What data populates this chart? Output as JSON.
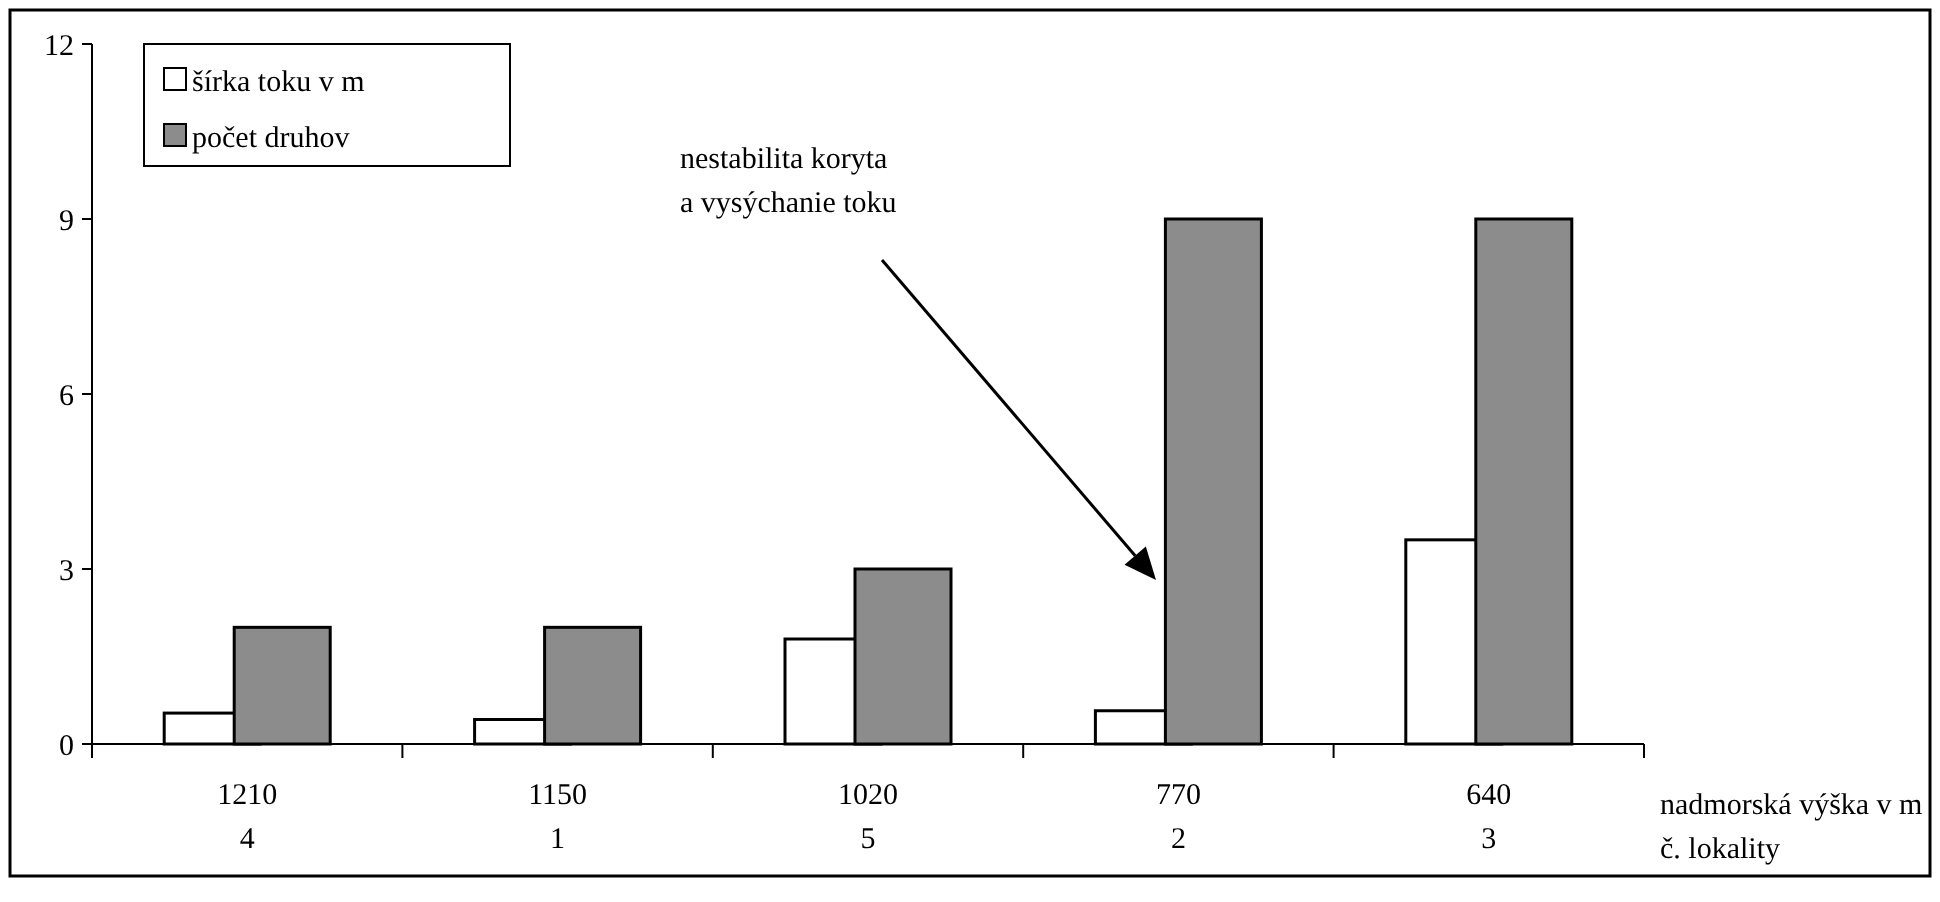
{
  "chart_data": {
    "type": "bar",
    "categories": [
      "1210\n4",
      "1150\n1",
      "1020\n5",
      "770\n2",
      "640\n3"
    ],
    "xlabel": "nadmorská výška v m\nč. lokality",
    "series": [
      {
        "name": "šírka toku v m",
        "color": "#ffffff",
        "values": [
          0.53,
          0.42,
          1.8,
          0.57,
          3.5
        ]
      },
      {
        "name": "počet druhov",
        "color": "#8c8c8c",
        "values": [
          2,
          2,
          3,
          9,
          9
        ]
      }
    ],
    "ylim": [
      0,
      12
    ],
    "yticks": [
      0,
      3,
      6,
      9,
      12
    ],
    "grid": false,
    "legend": "top left",
    "annotations": [
      "nestabilita koryta\na vysýchanie toku"
    ]
  }
}
